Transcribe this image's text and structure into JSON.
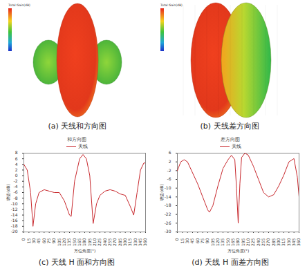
{
  "pattern_panels": [
    {
      "caption": "(a) 天线和方向图",
      "colorbar_title": "Total Gain(dB)"
    },
    {
      "caption": "(b) 天线差方向图",
      "colorbar_title": "Total Gain(dB)"
    }
  ],
  "chart_data": [
    {
      "type": "line",
      "title": "和方向图",
      "caption": "(c) 天线 H 面和方向图",
      "x_label": "方位角度(°)",
      "y_label": "增益(dB)",
      "x": [
        0,
        10,
        20,
        27,
        35,
        45,
        60,
        75,
        90,
        105,
        120,
        135,
        140,
        150,
        165,
        175,
        185,
        195,
        205,
        215,
        225,
        240,
        255,
        270,
        285,
        300,
        315,
        325,
        335,
        345,
        355,
        360
      ],
      "series": [
        {
          "name": "天线",
          "color": "#c8282d",
          "values": [
            4,
            2,
            -6,
            -18,
            -10,
            -6,
            -5,
            -5.5,
            -6,
            -6,
            -9,
            -14,
            -14.5,
            -2,
            6,
            7.5,
            6,
            0,
            -17,
            -10,
            -7,
            -5.5,
            -5,
            -5.5,
            -6.5,
            -7,
            -11,
            -14,
            -6,
            2,
            4.5,
            4.5
          ]
        }
      ],
      "xlim": [
        0,
        360
      ],
      "xticks": [
        0,
        15,
        30,
        45,
        60,
        75,
        90,
        105,
        120,
        135,
        150,
        165,
        180,
        195,
        210,
        225,
        240,
        255,
        270,
        285,
        300,
        315,
        330,
        345,
        360
      ],
      "ylim": [
        -20,
        8
      ],
      "yticks": [
        -20,
        -18,
        -16,
        -14,
        -12,
        -10,
        -8,
        -6,
        -4,
        -2,
        0,
        2,
        4,
        6,
        8
      ],
      "legend": "top",
      "grid": false
    },
    {
      "type": "line",
      "title": "差方向图",
      "caption": "(d) 天线 H 面差方向图",
      "x_label": "方位角度(°)",
      "y_label": "增益(dB)",
      "x": [
        0,
        10,
        20,
        30,
        45,
        60,
        75,
        90,
        95,
        105,
        120,
        135,
        150,
        160,
        170,
        175,
        180,
        185,
        190,
        200,
        210,
        225,
        240,
        255,
        270,
        285,
        300,
        315,
        330,
        345,
        355,
        360
      ],
      "series": [
        {
          "name": "天线",
          "color": "#c8282d",
          "values": [
            -2,
            2,
            3,
            2,
            -3,
            -8,
            -14,
            -20,
            -21,
            -18,
            -9,
            -1,
            3,
            5,
            3,
            -10,
            -26,
            -8,
            4,
            6,
            5,
            0,
            -6,
            -12,
            -14,
            -13,
            -9,
            -4,
            2,
            3.5,
            -5,
            -14
          ]
        }
      ],
      "xlim": [
        0,
        360
      ],
      "xticks": [
        0,
        15,
        30,
        45,
        60,
        75,
        90,
        105,
        120,
        135,
        150,
        165,
        180,
        195,
        210,
        225,
        240,
        255,
        270,
        285,
        300,
        315,
        330,
        345,
        360
      ],
      "ylim": [
        -30,
        6
      ],
      "yticks": [
        -30,
        -26,
        -22,
        -18,
        -14,
        -10,
        -6,
        -2,
        2,
        6
      ],
      "legend": "top",
      "grid": false
    }
  ]
}
